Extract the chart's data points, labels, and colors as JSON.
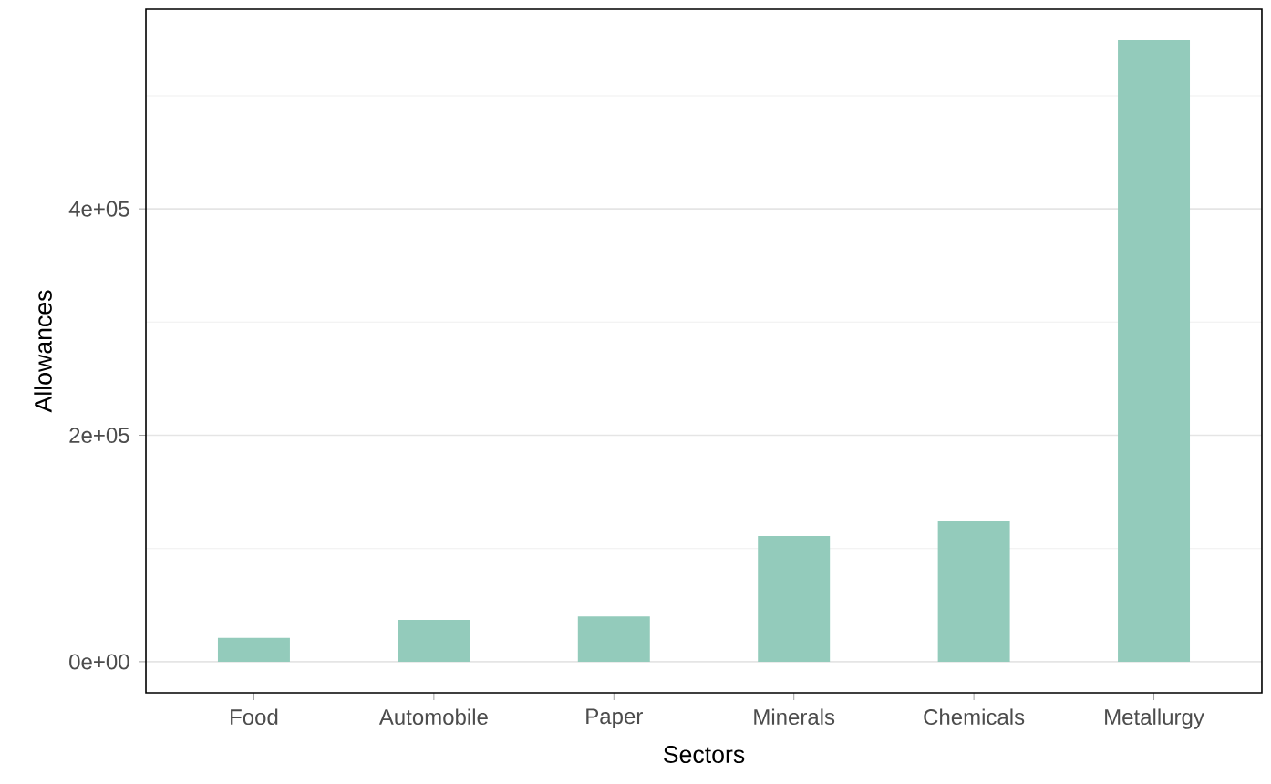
{
  "chart_data": {
    "type": "bar",
    "xlabel": "Sectors",
    "ylabel": "Allowances",
    "categories": [
      "Food",
      "Automobile",
      "Paper",
      "Minerals",
      "Chemicals",
      "Metallurgy"
    ],
    "values": [
      21000,
      37000,
      40000,
      111000,
      124000,
      549000
    ],
    "color": "#93cbbb",
    "ylim": [
      -27450,
      576450
    ],
    "yticks": [
      {
        "value": 0,
        "label": "0e+00"
      },
      {
        "value": 200000,
        "label": "2e+05"
      },
      {
        "value": 400000,
        "label": "4e+05"
      }
    ],
    "grid": "y"
  }
}
